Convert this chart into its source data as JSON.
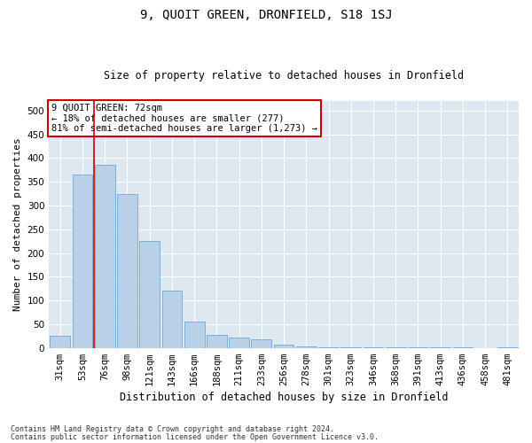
{
  "title": "9, QUOIT GREEN, DRONFIELD, S18 1SJ",
  "subtitle": "Size of property relative to detached houses in Dronfield",
  "xlabel": "Distribution of detached houses by size in Dronfield",
  "ylabel": "Number of detached properties",
  "footnote1": "Contains HM Land Registry data © Crown copyright and database right 2024.",
  "footnote2": "Contains public sector information licensed under the Open Government Licence v3.0.",
  "annotation_line1": "9 QUOIT GREEN: 72sqm",
  "annotation_line2": "← 18% of detached houses are smaller (277)",
  "annotation_line3": "81% of semi-detached houses are larger (1,273) →",
  "bar_color": "#b8d0e8",
  "bar_edge_color": "#6fa8d0",
  "highlight_line_color": "#cc0000",
  "background_color": "#dde8f0",
  "categories": [
    "31sqm",
    "53sqm",
    "76sqm",
    "98sqm",
    "121sqm",
    "143sqm",
    "166sqm",
    "188sqm",
    "211sqm",
    "233sqm",
    "256sqm",
    "278sqm",
    "301sqm",
    "323sqm",
    "346sqm",
    "368sqm",
    "391sqm",
    "413sqm",
    "436sqm",
    "458sqm",
    "481sqm"
  ],
  "values": [
    25,
    365,
    385,
    325,
    225,
    120,
    55,
    28,
    22,
    19,
    6,
    3,
    2,
    2,
    2,
    1,
    1,
    1,
    1,
    0,
    1
  ],
  "ylim": [
    0,
    520
  ],
  "yticks": [
    0,
    50,
    100,
    150,
    200,
    250,
    300,
    350,
    400,
    450,
    500
  ],
  "red_line_x": 1.5,
  "title_fontsize": 10,
  "subtitle_fontsize": 8.5,
  "xlabel_fontsize": 8.5,
  "ylabel_fontsize": 8,
  "tick_fontsize": 7.5,
  "annot_fontsize": 7.5,
  "footnote_fontsize": 6
}
